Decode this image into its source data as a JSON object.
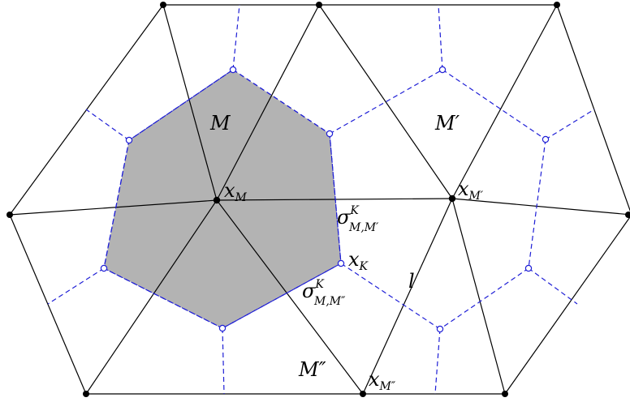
{
  "diagram": {
    "labels": {
      "M": "M",
      "M_prime": "M′",
      "M_dprime": "M″",
      "x_M": {
        "base": "x",
        "sub": "M"
      },
      "x_M_prime": {
        "base": "x",
        "sub": "M′"
      },
      "x_M_dprime": {
        "base": "x",
        "sub": "M″"
      },
      "x_K": {
        "base": "x",
        "sub": "K"
      },
      "sigma_MMp": {
        "base": "σ",
        "sup": "K",
        "sub": "M,M′"
      },
      "sigma_MMpp": {
        "base": "σ",
        "sup": "K",
        "sub": "M,M″"
      },
      "l": "l"
    },
    "colors": {
      "primal_edges": "#000000",
      "dual_edges": "#1f1fd6",
      "control_volume_fill": "#b3b3b3",
      "vertex_fill": "#000000",
      "dual_node_fill": "#ffffff"
    },
    "styles": {
      "primal_edges": "solid",
      "dual_edges": "dashed",
      "vertices": "filled-circle",
      "dual_nodes": "open-circle"
    }
  }
}
